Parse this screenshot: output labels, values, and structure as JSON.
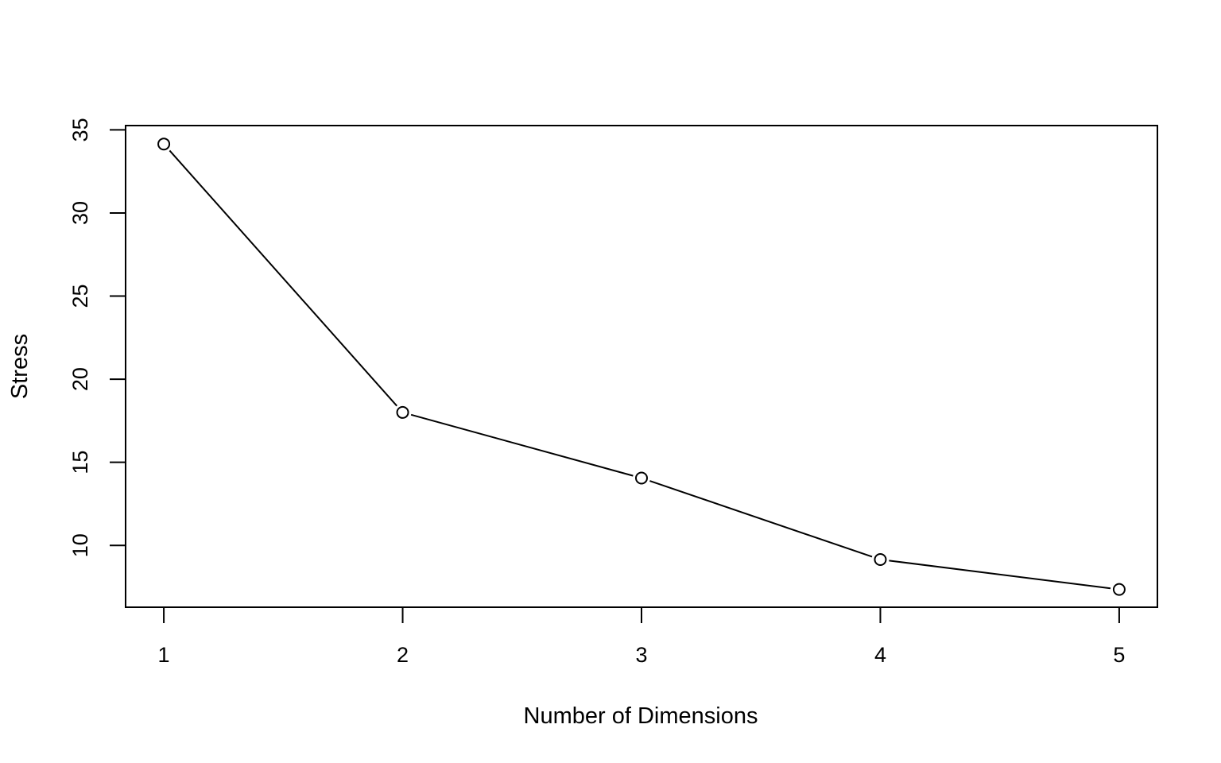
{
  "chart_data": {
    "type": "line",
    "title": "",
    "xlabel": "Number of Dimensions",
    "ylabel": "Stress",
    "x": [
      1,
      2,
      3,
      4,
      5
    ],
    "series": [
      {
        "values": [
          34.15,
          18.0,
          14.05,
          9.15,
          7.35
        ]
      }
    ],
    "xticks": [
      1,
      2,
      3,
      4,
      5
    ],
    "yticks": [
      10,
      15,
      20,
      25,
      30,
      35
    ],
    "xlim": [
      0.84,
      5.16
    ],
    "ylim": [
      6.28,
      35.26
    ],
    "grid": false,
    "marker": "open-circle",
    "line_color": "#000000"
  }
}
